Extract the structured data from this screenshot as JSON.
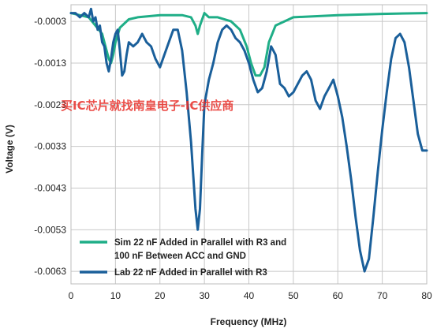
{
  "watermark": "买IC芯片就找南皇电子-IC供应商",
  "chart_data": {
    "type": "line",
    "xlabel": "Frequency (MHz)",
    "ylabel": "Voltage (V)",
    "xlim": [
      0,
      80
    ],
    "ylim": [
      -0.0066,
      0.0001
    ],
    "xticks": [
      "0",
      "10",
      "20",
      "30",
      "40",
      "50",
      "60",
      "70",
      "80"
    ],
    "yticks": [
      "-0.0003",
      "-0.0013",
      "-0.0023",
      "-0.0033",
      "-0.0043",
      "-0.0053",
      "-0.0063"
    ],
    "grid": true,
    "legend_position": "bottom-left",
    "series": [
      {
        "name": "Sim 22 nF Added in Parallel with R3 and 100 nF Between ACC and GND",
        "color": "#1fae87",
        "x": [
          0,
          4,
          7,
          8,
          8.5,
          9,
          9.5,
          10,
          11,
          13,
          15,
          20,
          25,
          27,
          28,
          28.5,
          29,
          30,
          31,
          33,
          36,
          38,
          39.5,
          40.5,
          41.5,
          42.5,
          43.5,
          44.5,
          46,
          50,
          60,
          70,
          80
        ],
        "y": [
          -0.0001,
          -0.0002,
          -0.0006,
          -0.001,
          -0.0012,
          -0.0013,
          -0.0011,
          -0.0008,
          -0.00045,
          -0.00025,
          -0.0002,
          -0.00015,
          -0.00015,
          -0.0002,
          -0.0004,
          -0.0006,
          -0.0004,
          -0.0001,
          -0.0002,
          -0.0002,
          -0.0003,
          -0.0005,
          -0.0009,
          -0.0013,
          -0.0016,
          -0.0016,
          -0.0014,
          -0.0008,
          -0.0004,
          -0.0002,
          -0.00015,
          -0.00012,
          -0.0001
        ]
      },
      {
        "name": "Lab 22 nF Added in Parallel with R3",
        "color": "#1a5f9a",
        "x": [
          0,
          1,
          2,
          3,
          4,
          4.5,
          5,
          5.5,
          6,
          6.5,
          7,
          7.5,
          8,
          8.5,
          9,
          9.5,
          10,
          10.5,
          11,
          11.5,
          12,
          12.5,
          13,
          14,
          15,
          16,
          17,
          18,
          19,
          20,
          21,
          22,
          23,
          24,
          25,
          26,
          27,
          28,
          28.5,
          29,
          29.5,
          30,
          31,
          32,
          33,
          34,
          35,
          36,
          37,
          38,
          39,
          40,
          41,
          42,
          43,
          44,
          45,
          46,
          47,
          48,
          49,
          50,
          51,
          52,
          53,
          54,
          55,
          56,
          57,
          58,
          59,
          60,
          61,
          62,
          63,
          64,
          65,
          66,
          67,
          68,
          69,
          70,
          71,
          72,
          73,
          74,
          75,
          76,
          77,
          78,
          79,
          80
        ],
        "y": [
          -0.0001,
          -0.0001,
          -0.0002,
          -0.0001,
          -0.0002,
          0.0,
          -0.0003,
          -0.0002,
          -0.0005,
          -0.0004,
          -0.0008,
          -0.0009,
          -0.0013,
          -0.0015,
          -0.0012,
          -0.0008,
          -0.0006,
          -0.0005,
          -0.001,
          -0.0016,
          -0.0015,
          -0.0011,
          -0.0008,
          -0.0009,
          -0.0008,
          -0.0006,
          -0.0008,
          -0.0009,
          -0.0012,
          -0.0014,
          -0.0011,
          -0.0008,
          -0.0005,
          -0.0005,
          -0.001,
          -0.002,
          -0.0032,
          -0.0048,
          -0.0053,
          -0.0048,
          -0.0035,
          -0.0023,
          -0.0017,
          -0.0013,
          -0.0008,
          -0.0005,
          -0.0004,
          -0.0005,
          -0.0007,
          -0.0008,
          -0.001,
          -0.0013,
          -0.0017,
          -0.002,
          -0.0019,
          -0.0015,
          -0.0009,
          -0.0011,
          -0.0018,
          -0.0019,
          -0.0021,
          -0.002,
          -0.0018,
          -0.0016,
          -0.0015,
          -0.0017,
          -0.0022,
          -0.0024,
          -0.0021,
          -0.0019,
          -0.0017,
          -0.0021,
          -0.0026,
          -0.0033,
          -0.0041,
          -0.005,
          -0.0058,
          -0.0063,
          -0.006,
          -0.005,
          -0.0039,
          -0.0029,
          -0.002,
          -0.0012,
          -0.0007,
          -0.0006,
          -0.0008,
          -0.0014,
          -0.0022,
          -0.003,
          -0.0034,
          -0.0034
        ]
      }
    ]
  }
}
